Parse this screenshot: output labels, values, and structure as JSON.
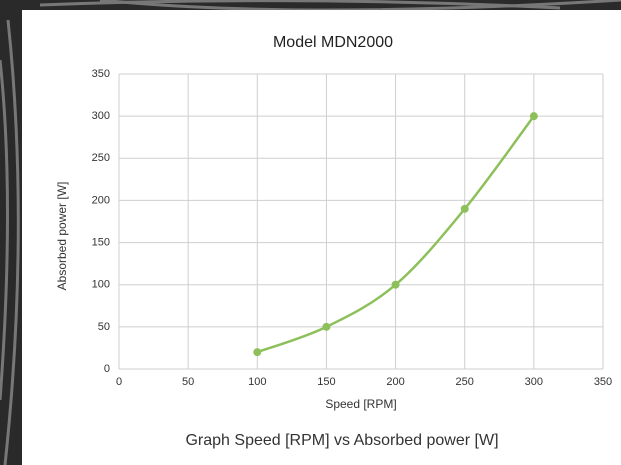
{
  "chart_data": {
    "type": "line",
    "title": "Model MDN2000",
    "x_label": "Speed [RPM]",
    "y_label": "Absorbed power [W]",
    "x": [
      100,
      150,
      200,
      250,
      300
    ],
    "series": [
      {
        "name": "Model MDN2000",
        "color": "#8dc05a",
        "values": [
          20,
          50,
          100,
          190,
          300
        ]
      }
    ],
    "xlim": [
      0,
      350
    ],
    "xticks": [
      0,
      50,
      100,
      150,
      200,
      250,
      300,
      350
    ],
    "ylim": [
      0,
      350
    ],
    "yticks": [
      0,
      50,
      100,
      150,
      200,
      250,
      300,
      350
    ],
    "grid": true,
    "smooth": true
  },
  "caption": "Graph Speed [RPM] vs Absorbed power [W]"
}
